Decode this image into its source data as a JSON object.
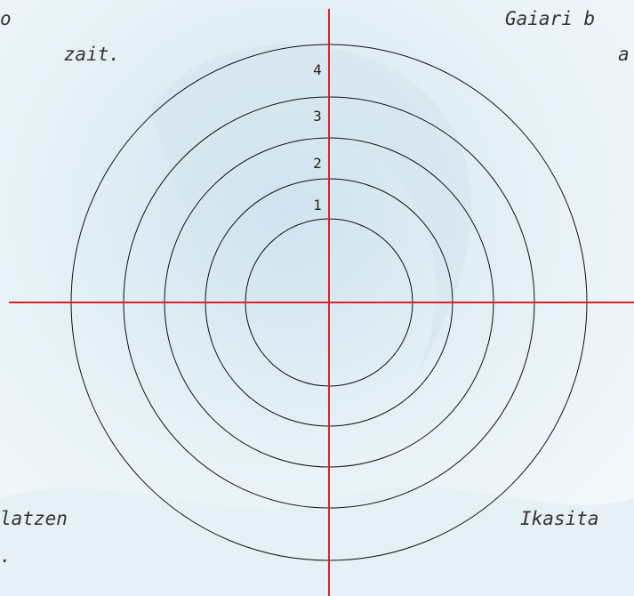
{
  "corner_texts": {
    "top_left": [
      "o",
      "zait."
    ],
    "top_right": [
      "Gaiari b",
      "a"
    ],
    "bottom_left": [
      "latzen",
      "."
    ],
    "bottom_right": [
      "Ikasita"
    ]
  },
  "ring_labels": [
    "1",
    "2",
    "3",
    "4"
  ]
}
